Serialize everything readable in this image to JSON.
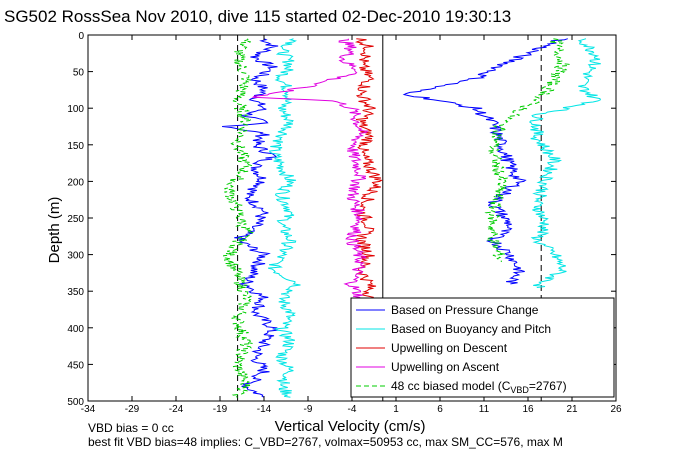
{
  "chart_data": {
    "type": "line",
    "title": "SG502 RossSea Nov 2010, dive 115 started 02-Dec-2010 19:30:13",
    "xlabel": "Vertical Velocity (cm/s)",
    "ylabel": "Depth (m)",
    "xlim": [
      -34,
      26
    ],
    "ylim": [
      500,
      0
    ],
    "xticks": [
      -34,
      -29,
      -24,
      -19,
      -14,
      -9,
      -4,
      1,
      6,
      11,
      16,
      21,
      26
    ],
    "yticks": [
      0,
      50,
      100,
      150,
      200,
      250,
      300,
      350,
      400,
      450,
      500
    ],
    "grid": false,
    "legend_position": "bottom-right",
    "reference_lines": {
      "dashed_x": [
        -17,
        17.5
      ],
      "solid_x": [
        -0.5
      ]
    },
    "legend": [
      {
        "label": "Based on Pressure Change",
        "color": "#0000ff",
        "style": "solid"
      },
      {
        "label": "Based on Buoyancy and Pitch",
        "color": "#00e5e5",
        "style": "solid"
      },
      {
        "label": "Upwelling on Descent",
        "color": "#e00000",
        "style": "solid"
      },
      {
        "label": "Upwelling on Ascent",
        "color": "#e000e0",
        "style": "solid"
      },
      {
        "label_main": "48 cc biased model (C",
        "label_sub": "VBD",
        "label_tail": "=2767)",
        "color": "#00cc00",
        "style": "dashed"
      }
    ],
    "series": [
      {
        "name": "Based on Pressure Change (descent)",
        "color": "#0000ff",
        "points": [
          [
            -14,
            5
          ],
          [
            -13,
            15
          ],
          [
            -15,
            30
          ],
          [
            -13,
            45
          ],
          [
            -15,
            60
          ],
          [
            -14,
            75
          ],
          [
            -15,
            90
          ],
          [
            -14,
            100
          ],
          [
            -16,
            110
          ],
          [
            -14,
            120
          ],
          [
            -18,
            125
          ],
          [
            -14,
            135
          ],
          [
            -15,
            150
          ],
          [
            -13,
            165
          ],
          [
            -15,
            180
          ],
          [
            -14,
            200
          ],
          [
            -16,
            220
          ],
          [
            -14,
            240
          ],
          [
            -15,
            260
          ],
          [
            -17,
            280
          ],
          [
            -14,
            300
          ],
          [
            -15,
            320
          ],
          [
            -16,
            340
          ],
          [
            -14,
            360
          ],
          [
            -15,
            380
          ],
          [
            -13,
            400
          ],
          [
            -14,
            420
          ],
          [
            -15,
            440
          ],
          [
            -14,
            460
          ],
          [
            -16,
            480
          ],
          [
            -14,
            495
          ]
        ]
      },
      {
        "name": "Based on Buoyancy and Pitch (descent)",
        "color": "#00e5e5",
        "points": [
          [
            -10,
            5
          ],
          [
            -12,
            20
          ],
          [
            -11,
            40
          ],
          [
            -12,
            60
          ],
          [
            -11,
            80
          ],
          [
            -12,
            100
          ],
          [
            -11,
            120
          ],
          [
            -12,
            140
          ],
          [
            -13,
            160
          ],
          [
            -12,
            180
          ],
          [
            -11,
            200
          ],
          [
            -12,
            220
          ],
          [
            -11,
            240
          ],
          [
            -12,
            260
          ],
          [
            -11,
            280
          ],
          [
            -12,
            300
          ],
          [
            -13,
            320
          ],
          [
            -10,
            340
          ],
          [
            -12,
            360
          ],
          [
            -11,
            380
          ],
          [
            -12,
            400
          ],
          [
            -11,
            420
          ],
          [
            -12,
            440
          ],
          [
            -11,
            460
          ],
          [
            -12,
            480
          ],
          [
            -11,
            495
          ]
        ]
      },
      {
        "name": "48 cc biased model (descent)",
        "color": "#00cc00",
        "dashed": true,
        "points": [
          [
            -16,
            5
          ],
          [
            -17,
            30
          ],
          [
            -16,
            60
          ],
          [
            -17,
            90
          ],
          [
            -16,
            120
          ],
          [
            -17,
            150
          ],
          [
            -16,
            180
          ],
          [
            -18,
            210
          ],
          [
            -17,
            240
          ],
          [
            -16,
            270
          ],
          [
            -18,
            300
          ],
          [
            -17,
            330
          ],
          [
            -16,
            360
          ],
          [
            -17,
            390
          ],
          [
            -16,
            420
          ],
          [
            -17,
            450
          ],
          [
            -16,
            480
          ],
          [
            -17,
            495
          ]
        ]
      },
      {
        "name": "Upwelling on Descent",
        "color": "#e00000",
        "points": [
          [
            -3,
            5
          ],
          [
            -2,
            20
          ],
          [
            -3,
            40
          ],
          [
            -2,
            60
          ],
          [
            -3,
            80
          ],
          [
            -2,
            100
          ],
          [
            -3,
            120
          ],
          [
            -2,
            140
          ],
          [
            -3,
            160
          ],
          [
            -2,
            180
          ],
          [
            -1,
            200
          ],
          [
            -2,
            220
          ],
          [
            -3,
            240
          ],
          [
            -2,
            260
          ],
          [
            -3,
            280
          ],
          [
            -2,
            300
          ],
          [
            -3,
            320
          ],
          [
            -2,
            340
          ],
          [
            -2,
            360
          ]
        ]
      },
      {
        "name": "Upwelling on Ascent",
        "color": "#e000e0",
        "points": [
          [
            -5,
            5
          ],
          [
            -4,
            20
          ],
          [
            -5,
            35
          ],
          [
            -3,
            50
          ],
          [
            -9,
            70
          ],
          [
            -15,
            85
          ],
          [
            -6,
            90
          ],
          [
            -4,
            100
          ],
          [
            -3,
            130
          ],
          [
            -4,
            160
          ],
          [
            -3,
            190
          ],
          [
            -4,
            220
          ],
          [
            -3,
            250
          ],
          [
            -4,
            280
          ],
          [
            -3,
            310
          ],
          [
            -4,
            340
          ],
          [
            -3,
            360
          ]
        ]
      },
      {
        "name": "Based on Pressure Change (ascent)",
        "color": "#0000ff",
        "points": [
          [
            20,
            5
          ],
          [
            15,
            30
          ],
          [
            10,
            60
          ],
          [
            2,
            80
          ],
          [
            6,
            90
          ],
          [
            10,
            100
          ],
          [
            12,
            120
          ],
          [
            13,
            150
          ],
          [
            14,
            180
          ],
          [
            15,
            200
          ],
          [
            12,
            230
          ],
          [
            14,
            260
          ],
          [
            12,
            280
          ],
          [
            14,
            300
          ],
          [
            15,
            320
          ],
          [
            14,
            340
          ]
        ]
      },
      {
        "name": "Based on Buoyancy and Pitch (ascent)",
        "color": "#00e5e5",
        "points": [
          [
            22,
            5
          ],
          [
            24,
            30
          ],
          [
            23,
            50
          ],
          [
            22,
            70
          ],
          [
            24,
            90
          ],
          [
            17,
            110
          ],
          [
            17,
            140
          ],
          [
            19,
            170
          ],
          [
            18,
            200
          ],
          [
            17,
            230
          ],
          [
            18,
            260
          ],
          [
            17,
            280
          ],
          [
            19,
            300
          ],
          [
            20,
            320
          ],
          [
            17,
            345
          ]
        ]
      },
      {
        "name": "48 cc biased model (ascent)",
        "color": "#00cc00",
        "dashed": true,
        "points": [
          [
            19,
            5
          ],
          [
            20,
            40
          ],
          [
            18,
            80
          ],
          [
            13,
            120
          ],
          [
            12,
            160
          ],
          [
            13,
            200
          ],
          [
            12,
            240
          ],
          [
            12,
            280
          ],
          [
            13,
            310
          ]
        ]
      }
    ]
  },
  "notes": {
    "line1": "VBD bias = 0 cc",
    "line2": "best fit VBD bias=48 implies: C_VBD=2767, volmax=50953 cc, max SM_CC=576, max M"
  }
}
